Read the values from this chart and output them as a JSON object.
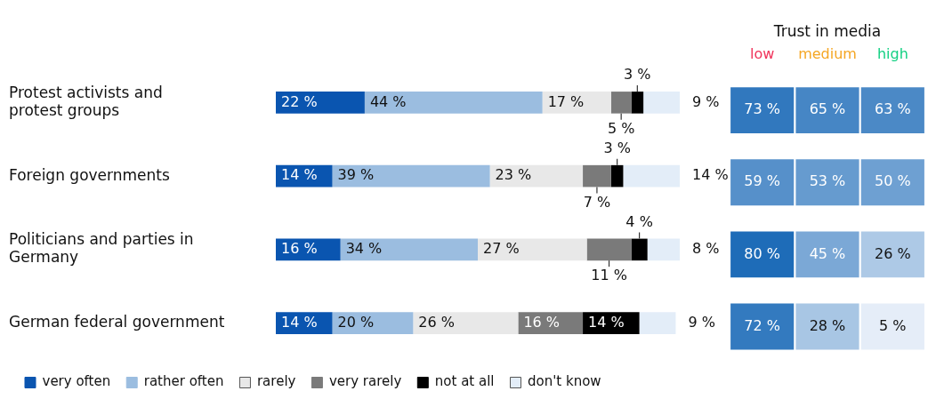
{
  "chart_data": [
    {
      "type": "bar",
      "orientation": "horizontal",
      "stacked": true,
      "categories": [
        "Protest activists and protest groups",
        "Foreign governments",
        "Politicians and parties in Germany",
        "German federal government"
      ],
      "xlim": [
        0,
        100
      ],
      "tick_labels": "y",
      "legend": "bottom",
      "series": [
        {
          "name": "very often",
          "color": "#0a55b0",
          "values": [
            22,
            14,
            16,
            14
          ],
          "value_labels": [
            "22 %",
            "14 %",
            "16 %",
            "14 %"
          ]
        },
        {
          "name": "rather often",
          "color": "#9bbde0",
          "values": [
            44,
            39,
            34,
            20
          ],
          "value_labels": [
            "44 %",
            "39 %",
            "34 %",
            "20 %"
          ]
        },
        {
          "name": "rarely",
          "color": "#e8e8e8",
          "values": [
            17,
            23,
            27,
            26
          ],
          "value_labels": [
            "17 %",
            "23 %",
            "27 %",
            "26 %"
          ]
        },
        {
          "name": "very rarely",
          "color": "#7a7a7a",
          "values": [
            5,
            7,
            11,
            16
          ],
          "value_labels": [
            "5 %",
            "7 %",
            "11 %",
            "16 %"
          ]
        },
        {
          "name": "not at all",
          "color": "#000000",
          "values": [
            3,
            3,
            4,
            14
          ],
          "value_labels": [
            "3 %",
            "3 %",
            "4 %",
            "14 %"
          ]
        },
        {
          "name": "don't know",
          "color": "#e3edf8",
          "values": [
            9,
            14,
            8,
            9
          ],
          "value_labels": [
            "9 %",
            "14 %",
            "8 %",
            "9 %"
          ]
        }
      ]
    },
    {
      "type": "heatmap",
      "title": "Trust in media",
      "categories": [
        "low",
        "medium",
        "high"
      ],
      "y_categories": [
        null,
        null,
        null,
        null
      ],
      "tick_labels": "x",
      "cells": [
        [
          73,
          65,
          63
        ],
        [
          59,
          53,
          50
        ],
        [
          80,
          45,
          26
        ],
        [
          72,
          28,
          5
        ]
      ],
      "cell_labels": [
        [
          "73 %",
          "65 %",
          "63 %"
        ],
        [
          "59 %",
          "53 %",
          "50 %"
        ],
        [
          "80 %",
          "45 %",
          "26 %"
        ],
        [
          "72 %",
          "28 %",
          "5 %"
        ]
      ]
    }
  ]
}
